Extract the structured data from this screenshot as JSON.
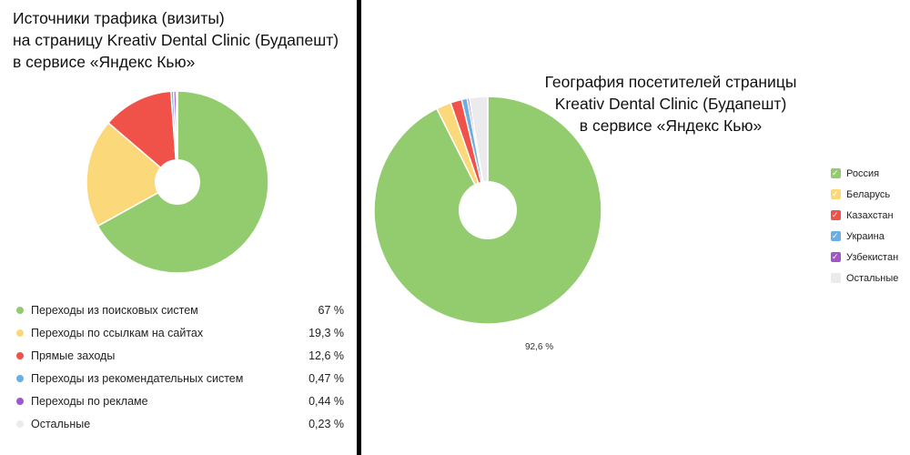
{
  "left": {
    "title_lines": [
      "Источники трафика (визиты)",
      "на страницу Kreativ Dental Clinic (Будапешт)",
      "в сервисе «Яндекс Кью»"
    ]
  },
  "right": {
    "title_lines": [
      "География посетителей страницы",
      "Kreativ Dental Clinic (Будапешт)",
      "в сервисе «Яндекс Кью»"
    ],
    "value_label": "92,6 %"
  },
  "chart_data": [
    {
      "type": "pie",
      "style": "donut",
      "legend_placement": "bottom",
      "series": [
        {
          "label": "Переходы из поисковых систем",
          "value": 67,
          "display": "67 %",
          "color": "#93cc6e"
        },
        {
          "label": "Переходы по ссылкам на сайтах",
          "value": 19.3,
          "display": "19,3 %",
          "color": "#fbd97a"
        },
        {
          "label": "Прямые заходы",
          "value": 12.6,
          "display": "12,6 %",
          "color": "#f0524a"
        },
        {
          "label": "Переходы из рекомендательных систем",
          "value": 0.47,
          "display": "0,47 %",
          "color": "#6aafe3"
        },
        {
          "label": "Переходы по рекламе",
          "value": 0.44,
          "display": "0,44 %",
          "color": "#a256c8"
        },
        {
          "label": "Остальные",
          "value": 0.23,
          "display": "0,23 %",
          "color": "#ebebed"
        }
      ]
    },
    {
      "type": "pie",
      "style": "donut",
      "legend_placement": "right",
      "series": [
        {
          "label": "Россия",
          "value": 92.6,
          "color": "#93cc6e"
        },
        {
          "label": "Беларусь",
          "value": 2.1,
          "color": "#fbd97a"
        },
        {
          "label": "Казахстан",
          "value": 1.6,
          "color": "#f0524a"
        },
        {
          "label": "Украина",
          "value": 0.8,
          "color": "#6aafe3"
        },
        {
          "label": "Узбекистан",
          "value": 0.3,
          "color": "#a256c8"
        },
        {
          "label": "Остальные",
          "value": 2.6,
          "color": "#ebebed"
        }
      ]
    }
  ]
}
